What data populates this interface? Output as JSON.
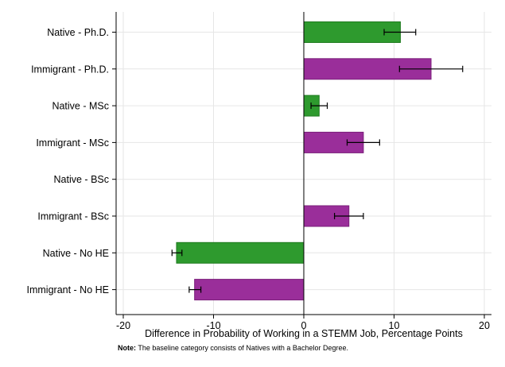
{
  "chart_data": {
    "type": "bar",
    "orientation": "horizontal",
    "title": "",
    "xlabel": "Difference in Probability of Working in a STEMM Job, Percentage Points",
    "ylabel": "",
    "xlim": [
      -20,
      20
    ],
    "xticks": [
      -20,
      -10,
      0,
      10,
      20
    ],
    "grid": true,
    "categories": [
      "Native - Ph.D.",
      "Immigrant - Ph.D.",
      "Native - MSc",
      "Immigrant - MSc",
      "Native - BSc",
      "Immigrant - BSc",
      "Native - No HE",
      "Immigrant - No HE"
    ],
    "values": [
      10.7,
      14.1,
      1.7,
      6.6,
      0.0,
      5.0,
      -14.1,
      -12.1
    ],
    "ci_low": [
      8.9,
      10.6,
      0.8,
      4.8,
      0.0,
      3.4,
      -14.6,
      -12.7
    ],
    "ci_high": [
      12.4,
      17.6,
      2.6,
      8.4,
      0.0,
      6.6,
      -13.5,
      -11.4
    ],
    "bar_colors": [
      "#2e9a2e",
      "#9a2e9a",
      "#2e9a2e",
      "#9a2e9a",
      "#2e9a2e",
      "#9a2e9a",
      "#2e9a2e",
      "#9a2e9a"
    ]
  },
  "note": {
    "label": "Note:",
    "text": " The baseline category consists of Natives with a Bachelor Degree."
  }
}
